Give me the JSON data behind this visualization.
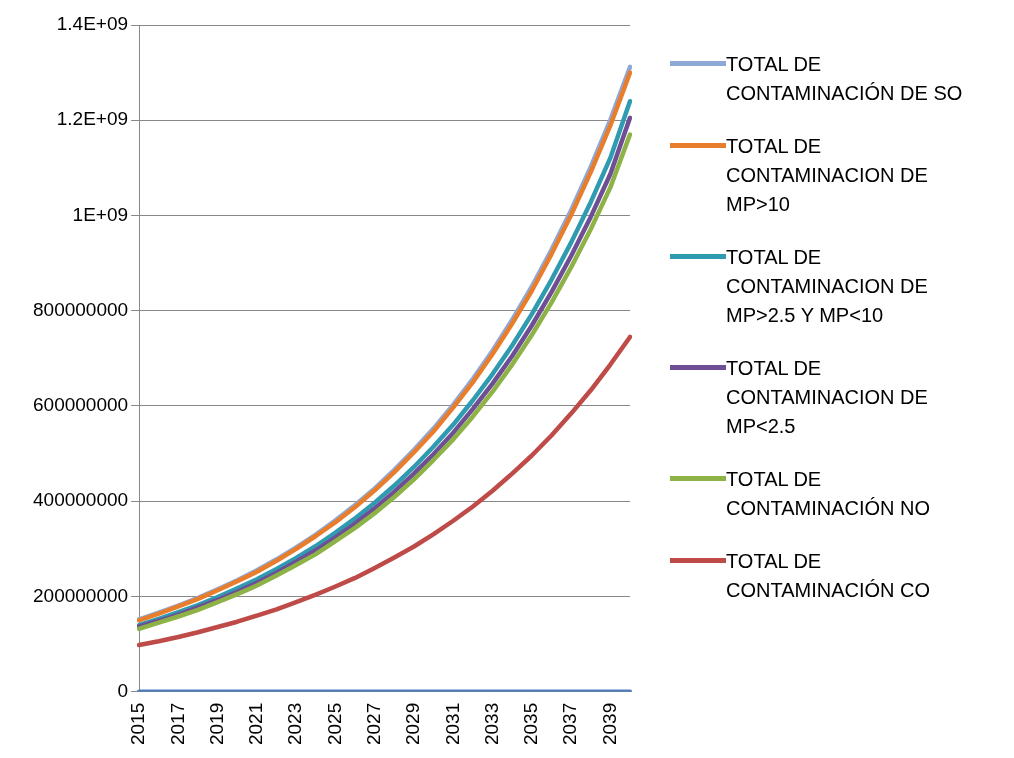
{
  "chart_data": {
    "type": "line",
    "categories": [
      "2015",
      null,
      "2017",
      null,
      "2019",
      null,
      "2021",
      null,
      "2023",
      null,
      "2025",
      null,
      "2027",
      null,
      "2029",
      null,
      "2031",
      null,
      "2033",
      null,
      "2035",
      null,
      "2037",
      null,
      "2039",
      null
    ],
    "series": [
      {
        "color": "#4f7dbb",
        "values": [
          0,
          0,
          0,
          0,
          0,
          0,
          0,
          0,
          0,
          0,
          0,
          0,
          0,
          0,
          0,
          0,
          0,
          0,
          0,
          0,
          0,
          0,
          0,
          0,
          0,
          0
        ]
      },
      {
        "name": "TOTAL DE CONTAMINACIÓN CO",
        "color": "#be4b48",
        "values": [
          98000000.0,
          106000000.0,
          115000000.0,
          125000000.0,
          136000000.0,
          147000000.0,
          160000000.0,
          173000000.0,
          188000000.0,
          204000000.0,
          221000000.0,
          239000000.0,
          260000000.0,
          282000000.0,
          305000000.0,
          331000000.0,
          359000000.0,
          389000000.0,
          422000000.0,
          458000000.0,
          496000000.0,
          538000000.0,
          584000000.0,
          633000000.0,
          687000000.0,
          745000000.0
        ]
      },
      {
        "name": "TOTAL DE CONTAMINACIÓN NO",
        "color": "#8db346",
        "values": [
          132000000.0,
          145000000.0,
          158000000.0,
          172000000.0,
          188000000.0,
          205000000.0,
          223000000.0,
          244000000.0,
          266000000.0,
          289000000.0,
          316000000.0,
          344000000.0,
          375000000.0,
          409000000.0,
          446000000.0,
          487000000.0,
          530000000.0,
          578000000.0,
          630000000.0,
          687000000.0,
          749000000.0,
          817000000.0,
          891000000.0,
          971000000.0,
          1059000000.0,
          1170000000.0
        ]
      },
      {
        "name": "TOTAL DE CONTAMINACION DE MP<2.5",
        "color": "#6e4f96",
        "values": [
          137000000.0,
          149000000.0,
          162000000.0,
          177000000.0,
          193000000.0,
          210000000.0,
          229000000.0,
          250000000.0,
          273000000.0,
          297000000.0,
          324000000.0,
          353000000.0,
          385000000.0,
          420000000.0,
          458000000.0,
          499000000.0,
          544000000.0,
          594000000.0,
          647000000.0,
          705000000.0,
          769000000.0,
          839000000.0,
          915000000.0,
          997000000.0,
          1087000000.0,
          1205000000.0
        ]
      },
      {
        "name": "TOTAL DE CONTAMINACION DE MP>2.5 Y MP<10",
        "color": "#2e9bb0",
        "values": [
          140000000.0,
          153000000.0,
          167000000.0,
          182000000.0,
          199000000.0,
          217000000.0,
          236000000.0,
          258000000.0,
          281000000.0,
          306000000.0,
          334000000.0,
          364000000.0,
          397000000.0,
          433000000.0,
          472000000.0,
          515000000.0,
          561000000.0,
          612000000.0,
          667000000.0,
          727000000.0,
          793000000.0,
          865000000.0,
          943000000.0,
          1028000000.0,
          1121000000.0,
          1240000000.0
        ]
      },
      {
        "name": "TOTAL DE CONTAMINACION DE MP>10",
        "color": "#e87e2c",
        "values": [
          150000000.0,
          164000000.0,
          179000000.0,
          195000000.0,
          213000000.0,
          232000000.0,
          252000000.0,
          275000000.0,
          300000000.0,
          327000000.0,
          356000000.0,
          388000000.0,
          423000000.0,
          461000000.0,
          503000000.0,
          547000000.0,
          597000000.0,
          650000000.0,
          709000000.0,
          773000000.0,
          842000000.0,
          919000000.0,
          1001000000.0,
          1091000000.0,
          1189000000.0,
          1300000000.0
        ]
      },
      {
        "name": "TOTAL DE CONTAMINACIÓN DE SO",
        "color": "#8ea9d8",
        "values": [
          152000000.0,
          166000000.0,
          181000000.0,
          197000000.0,
          215000000.0,
          234000000.0,
          255000000.0,
          278000000.0,
          303000000.0,
          330000000.0,
          360000000.0,
          392000000.0,
          427000000.0,
          466000000.0,
          508000000.0,
          553000000.0,
          603000000.0,
          657000000.0,
          716000000.0,
          781000000.0,
          851000000.0,
          928000000.0,
          1011000000.0,
          1102000000.0,
          1201000000.0,
          1312000000.0
        ]
      }
    ],
    "ylim": [
      0,
      1400000000
    ],
    "yticks": [
      0,
      200000000,
      400000000,
      600000000,
      800000000,
      {
        "value": 1000000000,
        "label": "1E+09"
      },
      {
        "value": 1200000000,
        "label": "1.2E+09"
      },
      {
        "value": 1400000000,
        "label": "1.4E+09"
      }
    ],
    "grid": "y",
    "legend": "right",
    "marker": "none",
    "line_style": "solid"
  }
}
